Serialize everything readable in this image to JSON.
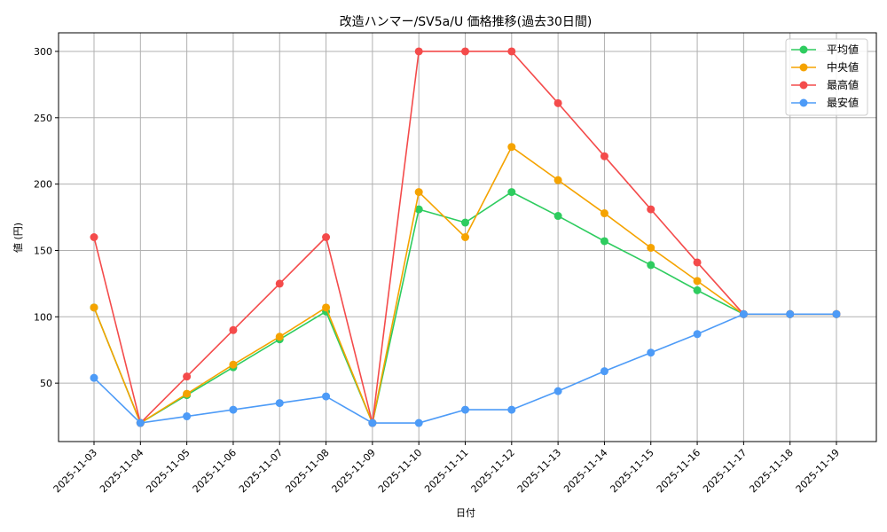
{
  "chart_data": {
    "type": "line",
    "title": "改造ハンマー/SV5a/U 価格推移(過去30日間)",
    "xlabel": "日付",
    "ylabel": "値 (円)",
    "ylim": [
      6,
      314
    ],
    "yticks": [
      50,
      100,
      150,
      200,
      250,
      300
    ],
    "grid": true,
    "legend_position": "upper right",
    "x": [
      "2025-11-03",
      "2025-11-04",
      "2025-11-05",
      "2025-11-06",
      "2025-11-07",
      "2025-11-08",
      "2025-11-09",
      "2025-11-10",
      "2025-11-11",
      "2025-11-12",
      "2025-11-13",
      "2025-11-14",
      "2025-11-15",
      "2025-11-16",
      "2025-11-17",
      "2025-11-18",
      "2025-11-19"
    ],
    "series": [
      {
        "name": "平均値",
        "color": "#2ecc5f",
        "values": [
          107,
          20,
          41,
          62,
          83,
          104,
          20,
          181,
          171,
          194,
          176,
          157,
          139,
          120,
          102,
          102,
          102
        ]
      },
      {
        "name": "中央値",
        "color": "#f5a300",
        "values": [
          107,
          20,
          42,
          64,
          85,
          107,
          20,
          194,
          160,
          228,
          203,
          178,
          152,
          127,
          102,
          102,
          102
        ]
      },
      {
        "name": "最高値",
        "color": "#f44b4b",
        "values": [
          160,
          20,
          55,
          90,
          125,
          160,
          20,
          300,
          300,
          300,
          261,
          221,
          181,
          141,
          102,
          102,
          102
        ]
      },
      {
        "name": "最安値",
        "color": "#4d9bf7",
        "values": [
          54,
          20,
          25,
          30,
          35,
          40,
          20,
          20,
          30,
          30,
          44,
          59,
          73,
          87,
          102,
          102,
          102
        ]
      }
    ]
  }
}
